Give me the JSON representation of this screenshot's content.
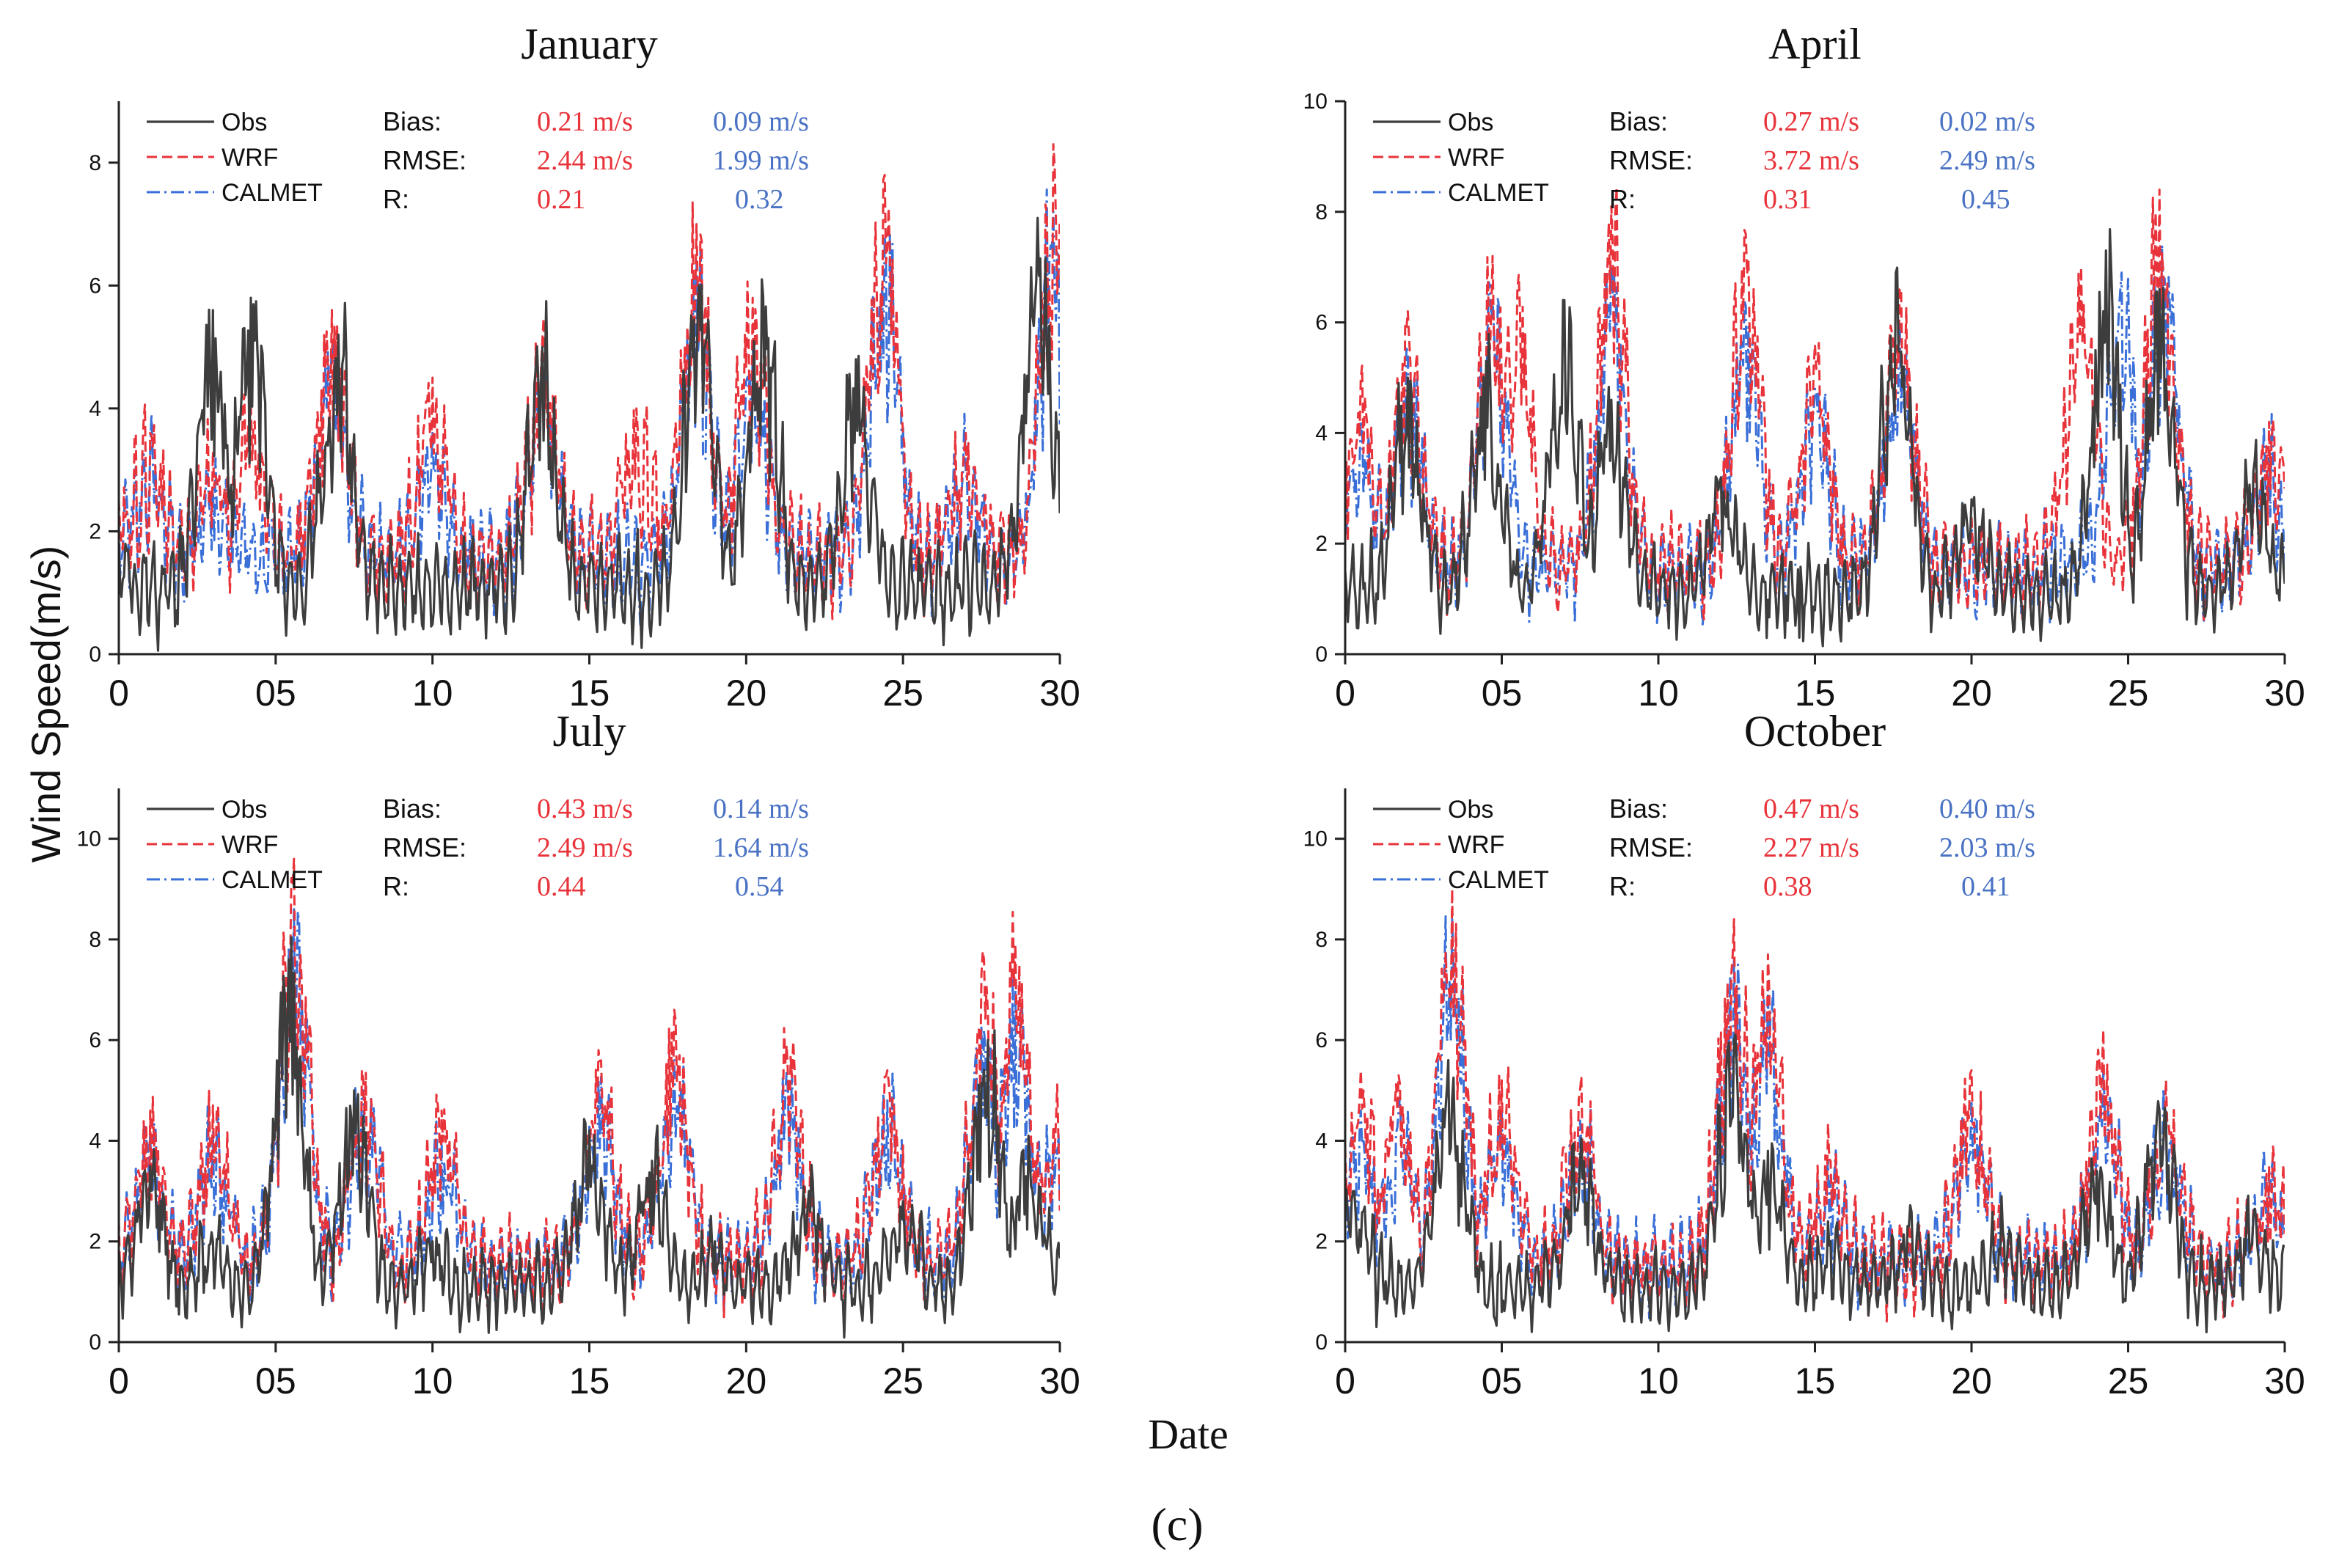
{
  "figure": {
    "ylabel": "Wind Speed(m/s)",
    "xlabel": "Date",
    "caption": "(c)",
    "colors": {
      "obs": "#3d3d3d",
      "wrf": "#e8333a",
      "calmet": "#3a6fd8",
      "stats_wrf": "#e8333a",
      "stats_calmet": "#4a72c4",
      "axis": "#222222"
    },
    "legend": [
      "Obs",
      "WRF",
      "CALMET"
    ],
    "stat_labels": [
      "Bias:",
      "RMSE:",
      "R:"
    ]
  },
  "chart_data": [
    {
      "type": "line",
      "title": "January",
      "x_ticks": [
        "0",
        "05",
        "10",
        "15",
        "20",
        "25",
        "30"
      ],
      "y_ticks": [
        "0",
        "2",
        "4",
        "6",
        "8"
      ],
      "xlim": [
        0,
        30
      ],
      "ylim": [
        0,
        9
      ],
      "stats": {
        "wrf": [
          "0.21 m/s",
          "2.44 m/s",
          "0.21"
        ],
        "calmet": [
          "0.09 m/s",
          "1.99 m/s",
          "0.32"
        ]
      },
      "series": [
        {
          "name": "Obs",
          "peaks": [
            [
              0,
              1.8
            ],
            [
              1,
              1.0
            ],
            [
              3,
              5.6
            ],
            [
              4.2,
              5.8
            ],
            [
              7,
              5.2
            ],
            [
              9,
              1.2
            ],
            [
              13.5,
              5.0
            ],
            [
              15.5,
              0.4
            ],
            [
              18.5,
              6.0
            ],
            [
              20.5,
              6.1
            ],
            [
              23.5,
              4.8
            ],
            [
              26,
              0.5
            ],
            [
              29.3,
              7.1
            ]
          ]
        },
        {
          "name": "WRF",
          "peaks": [
            [
              0,
              2.5
            ],
            [
              1,
              3.6
            ],
            [
              3,
              3.3
            ],
            [
              4.2,
              4.1
            ],
            [
              6.8,
              5.6
            ],
            [
              10,
              4.5
            ],
            [
              13.5,
              5.1
            ],
            [
              16.5,
              4.0
            ],
            [
              18.4,
              7.0
            ],
            [
              20.2,
              5.8
            ],
            [
              24.4,
              7.8
            ],
            [
              27,
              3.6
            ],
            [
              29.8,
              8.3
            ]
          ]
        },
        {
          "name": "CALMET",
          "peaks": [
            [
              0,
              2.2
            ],
            [
              1,
              3.3
            ],
            [
              3,
              2.7
            ],
            [
              6.8,
              5.0
            ],
            [
              10,
              3.6
            ],
            [
              13.5,
              4.6
            ],
            [
              18.4,
              6.4
            ],
            [
              20.2,
              5.0
            ],
            [
              24.4,
              6.8
            ],
            [
              27,
              3.0
            ],
            [
              29.8,
              7.2
            ]
          ]
        }
      ]
    },
    {
      "type": "line",
      "title": "April",
      "x_ticks": [
        "0",
        "05",
        "10",
        "15",
        "20",
        "25",
        "30"
      ],
      "y_ticks": [
        "0",
        "2",
        "4",
        "6",
        "8",
        "10"
      ],
      "xlim": [
        0,
        30
      ],
      "ylim": [
        0,
        10
      ],
      "stats": {
        "wrf": [
          "0.27 m/s",
          "3.72 m/s",
          "0.31"
        ],
        "calmet": [
          "0.02 m/s",
          "2.49 m/s",
          "0.45"
        ]
      },
      "series": [
        {
          "name": "Obs",
          "peaks": [
            [
              0,
              1.5
            ],
            [
              2,
              5.0
            ],
            [
              4.5,
              5.3
            ],
            [
              7,
              6.4
            ],
            [
              8.5,
              4.6
            ],
            [
              12,
              3.2
            ],
            [
              14.5,
              0.3
            ],
            [
              17.6,
              6.9
            ],
            [
              20,
              2.8
            ],
            [
              24.3,
              7.3
            ],
            [
              26,
              6.6
            ],
            [
              29,
              3.3
            ]
          ]
        },
        {
          "name": "WRF",
          "peaks": [
            [
              0.5,
              5.0
            ],
            [
              2,
              6.2
            ],
            [
              4.7,
              7.2
            ],
            [
              5.5,
              6.6
            ],
            [
              8.5,
              8.1
            ],
            [
              12.8,
              7.6
            ],
            [
              15,
              5.6
            ],
            [
              17.7,
              6.6
            ],
            [
              23.5,
              7.0
            ],
            [
              26,
              8.4
            ],
            [
              29.5,
              4.2
            ]
          ]
        },
        {
          "name": "CALMET",
          "peaks": [
            [
              0.5,
              4.2
            ],
            [
              2,
              5.4
            ],
            [
              4.7,
              6.4
            ],
            [
              8.5,
              7.0
            ],
            [
              12.8,
              6.3
            ],
            [
              15,
              4.8
            ],
            [
              17.7,
              6.0
            ],
            [
              24.8,
              6.9
            ],
            [
              26.1,
              7.4
            ],
            [
              29.5,
              3.6
            ]
          ]
        }
      ]
    },
    {
      "type": "line",
      "title": "July",
      "x_ticks": [
        "0",
        "05",
        "10",
        "15",
        "20",
        "25",
        "30"
      ],
      "y_ticks": [
        "0",
        "2",
        "4",
        "6",
        "8",
        "10"
      ],
      "xlim": [
        0,
        30
      ],
      "ylim": [
        0,
        11
      ],
      "stats": {
        "wrf": [
          "0.43 m/s",
          "2.49 m/s",
          "0.44"
        ],
        "calmet": [
          "0.14 m/s",
          "1.64 m/s",
          "0.54"
        ]
      },
      "series": [
        {
          "name": "Obs",
          "peaks": [
            [
              1,
              3.5
            ],
            [
              3,
              2.0
            ],
            [
              5.4,
              7.6
            ],
            [
              7.5,
              5.0
            ],
            [
              10,
              2.0
            ],
            [
              13,
              1.2
            ],
            [
              15,
              4.2
            ],
            [
              17,
              3.6
            ],
            [
              19,
              2.0
            ],
            [
              22,
              3.0
            ],
            [
              25,
              2.8
            ],
            [
              27.7,
              6.0
            ],
            [
              29,
              4.1
            ]
          ]
        },
        {
          "name": "WRF",
          "peaks": [
            [
              1,
              4.6
            ],
            [
              3,
              4.7
            ],
            [
              5.6,
              9.6
            ],
            [
              7.8,
              5.2
            ],
            [
              10.3,
              4.6
            ],
            [
              15.3,
              5.8
            ],
            [
              17.7,
              6.6
            ],
            [
              21.3,
              5.9
            ],
            [
              24.5,
              5.4
            ],
            [
              27.6,
              7.6
            ],
            [
              28.6,
              7.9
            ],
            [
              29.8,
              4.3
            ]
          ]
        },
        {
          "name": "CALMET",
          "peaks": [
            [
              1,
              4.2
            ],
            [
              3,
              4.2
            ],
            [
              5.6,
              8.6
            ],
            [
              7.8,
              5.0
            ],
            [
              10.3,
              4.0
            ],
            [
              15.3,
              5.2
            ],
            [
              17.7,
              5.6
            ],
            [
              21.3,
              5.4
            ],
            [
              24.5,
              4.8
            ],
            [
              27.6,
              6.2
            ],
            [
              28.6,
              7.0
            ],
            [
              29.8,
              4.0
            ]
          ]
        }
      ]
    },
    {
      "type": "line",
      "title": "October",
      "x_ticks": [
        "0",
        "05",
        "10",
        "15",
        "20",
        "25",
        "30"
      ],
      "y_ticks": [
        "0",
        "2",
        "4",
        "6",
        "8",
        "10"
      ],
      "xlim": [
        0,
        30
      ],
      "ylim": [
        0,
        11
      ],
      "stats": {
        "wrf": [
          "0.47 m/s",
          "2.27 m/s",
          "0.38"
        ],
        "calmet": [
          "0.40 m/s",
          "2.03 m/s",
          "0.41"
        ]
      },
      "series": [
        {
          "name": "Obs",
          "peaks": [
            [
              0.3,
              3.0
            ],
            [
              1,
              0.3
            ],
            [
              3.3,
              5.6
            ],
            [
              5,
              0.6
            ],
            [
              7.5,
              3.6
            ],
            [
              12.4,
              6.0
            ],
            [
              13.5,
              3.8
            ],
            [
              15.5,
              2.0
            ],
            [
              18,
              2.3
            ],
            [
              21,
              2.2
            ],
            [
              24,
              3.4
            ],
            [
              26,
              4.6
            ],
            [
              29,
              2.5
            ]
          ]
        },
        {
          "name": "WRF",
          "peaks": [
            [
              0.5,
              5.4
            ],
            [
              1.7,
              5.3
            ],
            [
              3.4,
              9.0
            ],
            [
              5,
              5.2
            ],
            [
              7.5,
              5.0
            ],
            [
              12.4,
              8.4
            ],
            [
              13.5,
              7.7
            ],
            [
              15.5,
              3.6
            ],
            [
              20,
              5.4
            ],
            [
              24.2,
              6.2
            ],
            [
              26.2,
              5.2
            ],
            [
              29.5,
              3.5
            ]
          ]
        },
        {
          "name": "CALMET",
          "peaks": [
            [
              0.5,
              4.6
            ],
            [
              1.7,
              4.6
            ],
            [
              3.4,
              8.4
            ],
            [
              5,
              4.6
            ],
            [
              7.5,
              4.4
            ],
            [
              12.4,
              7.6
            ],
            [
              13.5,
              7.0
            ],
            [
              15.5,
              3.2
            ],
            [
              20,
              4.8
            ],
            [
              24.2,
              5.4
            ],
            [
              26.2,
              4.6
            ],
            [
              29.5,
              3.2
            ]
          ]
        }
      ]
    }
  ]
}
